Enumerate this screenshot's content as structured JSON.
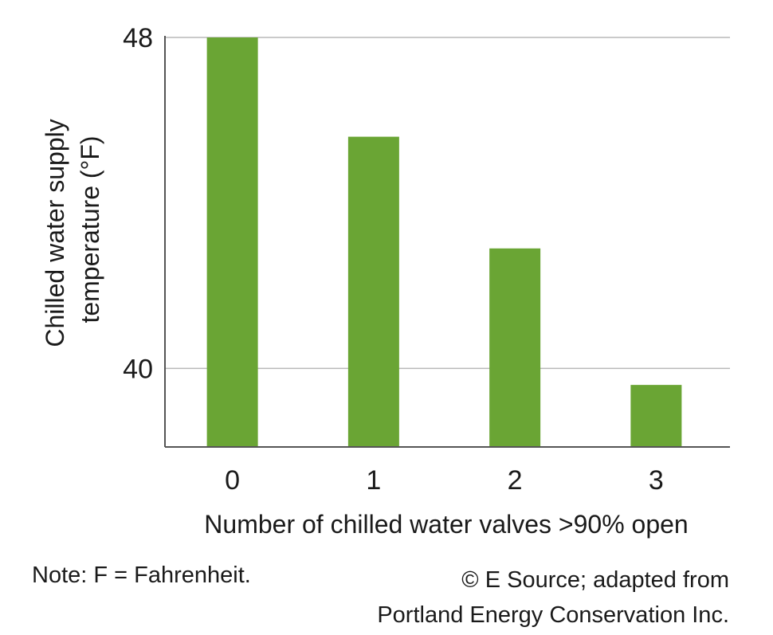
{
  "chart_data": {
    "type": "bar",
    "categories": [
      "0",
      "1",
      "2",
      "3"
    ],
    "values": [
      48,
      45.6,
      42.9,
      39.6
    ],
    "xlabel": "Number of chilled water valves >90% open",
    "ylabel_lines": [
      "Chilled water supply",
      "temperature (°F)"
    ],
    "yticks": [
      40,
      48
    ],
    "ylim": [
      38.1,
      48
    ],
    "grid": true,
    "bar_color": "#6aa534"
  },
  "note": "Note: F = Fahrenheit.",
  "credit": {
    "line1": "© E Source; adapted from",
    "line2": "Portland Energy Conservation Inc."
  }
}
